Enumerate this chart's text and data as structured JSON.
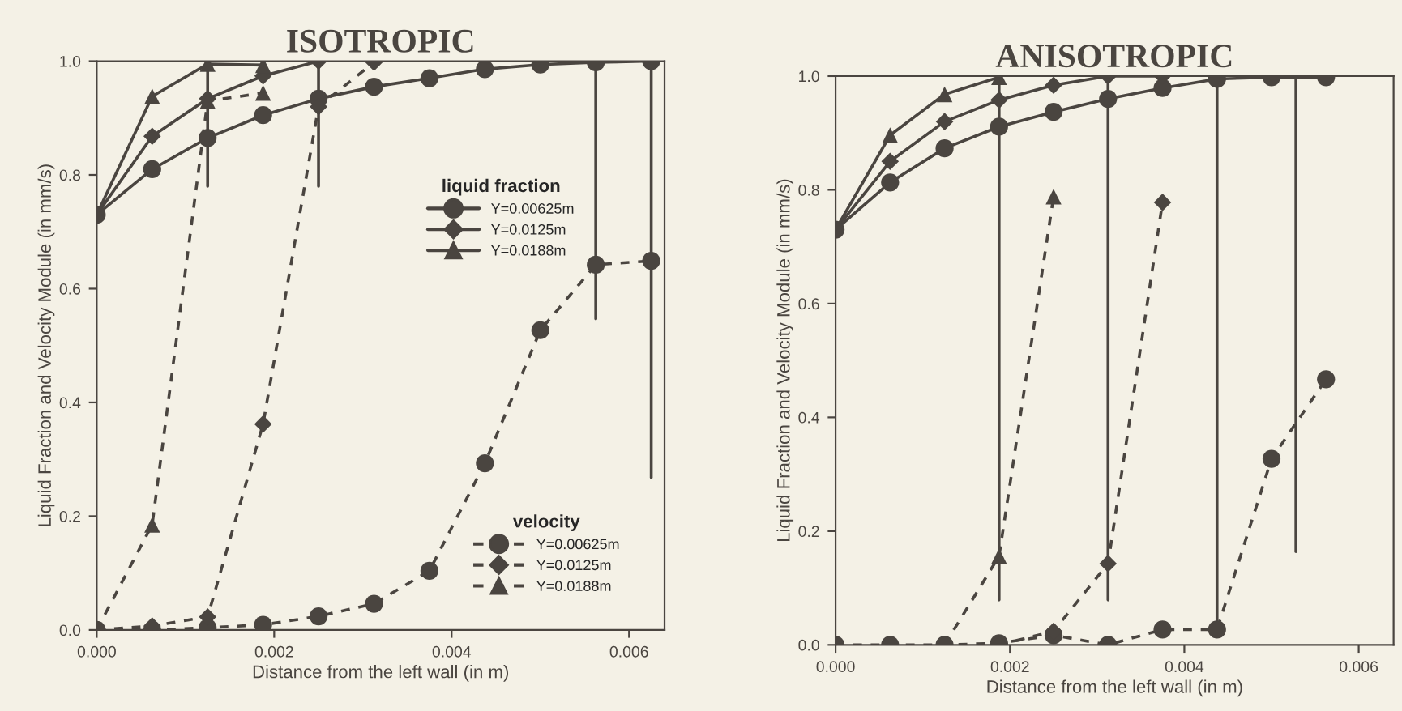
{
  "chart_data": [
    {
      "type": "line",
      "title": "ISOTROPIC",
      "xlabel": "Distance from the left wall (in m)",
      "ylabel": "Liquid Fraction and Velocity Module (in mm/s)",
      "xlim": [
        0,
        0.0064
      ],
      "ylim": [
        0,
        1.0
      ],
      "xticks": [
        {
          "value": 0,
          "label": "0.000"
        },
        {
          "value": 0.002,
          "label": "0.002"
        },
        {
          "value": 0.004,
          "label": "0.004"
        },
        {
          "value": 0.006,
          "label": "0.006"
        }
      ],
      "yticks": [
        {
          "value": 0,
          "label": "0.0"
        },
        {
          "value": 0.2,
          "label": "0.2"
        },
        {
          "value": 0.4,
          "label": "0.4"
        },
        {
          "value": 0.6,
          "label": "0.6"
        },
        {
          "value": 0.8,
          "label": "0.8"
        },
        {
          "value": 1.0,
          "label": "1.0"
        }
      ],
      "grid": false,
      "legend": [
        "center right",
        "lower right"
      ],
      "legend_title": [
        "liquid fraction",
        "velocity"
      ],
      "series": [
        {
          "name": "Y=0.00625m",
          "color": "#4a4540",
          "marker": "circle",
          "line_style": "solid",
          "x": [
            0,
            0.000625,
            0.00125,
            0.001875,
            0.0025,
            0.003125,
            0.00375,
            0.004375,
            0.005,
            0.005625,
            0.00625
          ],
          "values": [
            0.73,
            0.81,
            0.865,
            0.905,
            0.934,
            0.955,
            0.97,
            0.986,
            0.994,
            0.998,
            1.0
          ]
        },
        {
          "name": "Y=0.0125m",
          "color": "#4a4540",
          "marker": "diamond",
          "line_style": "solid",
          "x": [
            0,
            0.000625,
            0.00125,
            0.001875,
            0.0025
          ],
          "values": [
            0.73,
            0.868,
            0.934,
            0.974,
            1.0
          ]
        },
        {
          "name": "Y=0.0188m",
          "color": "#4a4540",
          "marker": "triangle",
          "line_style": "solid",
          "x": [
            0,
            0.000625,
            0.00125,
            0.001875
          ],
          "values": [
            0.73,
            0.938,
            0.995,
            0.993
          ]
        },
        {
          "name": "Y=0.00625m",
          "color": "#4a4540",
          "marker": "circle",
          "line_style": "dashed",
          "x": [
            0,
            0.000625,
            0.00125,
            0.001875,
            0.0025,
            0.003125,
            0.00375,
            0.004375,
            0.005,
            0.005625,
            0.00625
          ],
          "values": [
            0,
            0,
            0.004,
            0.009,
            0.024,
            0.046,
            0.104,
            0.293,
            0.527,
            0.642,
            0.649
          ]
        },
        {
          "name": "Y=0.0125m",
          "color": "#4a4540",
          "marker": "diamond",
          "line_style": "dashed",
          "x": [
            0,
            0.000625,
            0.00125,
            0.001875,
            0.0025,
            0.003125
          ],
          "values": [
            0,
            0.007,
            0.023,
            0.362,
            0.92,
            0.998
          ]
        },
        {
          "name": "Y=0.0188m",
          "color": "#4a4540",
          "marker": "triangle",
          "line_style": "dashed",
          "x": [
            0,
            0.000625,
            0.00125,
            0.001875
          ],
          "values": [
            0,
            0.185,
            0.93,
            0.944
          ]
        },
        {
          "color": "#4a4540",
          "marker": "none",
          "line_style": "solid",
          "x": [
            0.00125,
            0.00125
          ],
          "values": [
            1.0,
            0.78
          ]
        },
        {
          "color": "#4a4540",
          "marker": "none",
          "line_style": "solid",
          "x": [
            0.0025,
            0.0025
          ],
          "values": [
            1.0,
            0.78
          ]
        },
        {
          "color": "#4a4540",
          "marker": "none",
          "line_style": "solid",
          "x": [
            0.005625,
            0.005625
          ],
          "values": [
            1.0,
            0.547
          ]
        },
        {
          "color": "#4a4540",
          "marker": "none",
          "line_style": "solid",
          "x": [
            0.00625,
            0.00625
          ],
          "values": [
            1.0,
            0.268
          ]
        }
      ]
    },
    {
      "type": "line",
      "title": "ANISOTROPIC",
      "xlabel": "Distance from the left wall (in m)",
      "ylabel": "Liquid Fraction and Velocity Module (in mm/s)",
      "xlim": [
        0,
        0.0064
      ],
      "ylim": [
        0,
        1.0
      ],
      "xticks": [
        {
          "value": 0,
          "label": "0.000"
        },
        {
          "value": 0.002,
          "label": "0.002"
        },
        {
          "value": 0.004,
          "label": "0.004"
        },
        {
          "value": 0.006,
          "label": "0.006"
        }
      ],
      "yticks": [
        {
          "value": 0,
          "label": "0.0"
        },
        {
          "value": 0.2,
          "label": "0.2"
        },
        {
          "value": 0.4,
          "label": "0.4"
        },
        {
          "value": 0.6,
          "label": "0.6"
        },
        {
          "value": 0.8,
          "label": "0.8"
        },
        {
          "value": 1.0,
          "label": "1.0"
        }
      ],
      "grid": false,
      "series": [
        {
          "color": "#4a4540",
          "marker": "circle",
          "line_style": "solid",
          "x": [
            0,
            0.000625,
            0.00125,
            0.001875,
            0.0025,
            0.003125,
            0.00375,
            0.004375,
            0.005,
            0.005625
          ],
          "values": [
            0.73,
            0.813,
            0.873,
            0.911,
            0.937,
            0.96,
            0.979,
            0.995,
            0.998,
            0.998
          ]
        },
        {
          "color": "#4a4540",
          "marker": "diamond",
          "line_style": "solid",
          "x": [
            0,
            0.000625,
            0.00125,
            0.001875,
            0.0025,
            0.003125,
            0.00375
          ],
          "values": [
            0.73,
            0.85,
            0.92,
            0.958,
            0.984,
            1.0,
            1.0
          ]
        },
        {
          "color": "#4a4540",
          "marker": "triangle",
          "line_style": "solid",
          "x": [
            0,
            0.000625,
            0.00125,
            0.001875
          ],
          "values": [
            0.73,
            0.896,
            0.968,
            0.998
          ]
        },
        {
          "color": "#4a4540",
          "marker": "circle",
          "line_style": "dashed",
          "x": [
            0,
            0.000625,
            0.00125,
            0.001875,
            0.0025,
            0.003125,
            0.00375,
            0.004375,
            0.005,
            0.005625
          ],
          "values": [
            0,
            0,
            0,
            0.003,
            0.017,
            0,
            0.027,
            0.027,
            0.327,
            0.467
          ]
        },
        {
          "color": "#4a4540",
          "marker": "diamond",
          "line_style": "dashed",
          "x": [
            0.001875,
            0.0025,
            0.003125,
            0.00375
          ],
          "values": [
            0,
            0.024,
            0.143,
            0.778
          ]
        },
        {
          "color": "#4a4540",
          "marker": "triangle",
          "line_style": "dashed",
          "x": [
            0.00125,
            0.001875,
            0.0025
          ],
          "values": [
            0,
            0.156,
            0.788
          ]
        },
        {
          "color": "#4a4540",
          "marker": "none",
          "line_style": "solid",
          "x": [
            0.001875,
            0.001875
          ],
          "values": [
            1.0,
            0.079
          ]
        },
        {
          "color": "#4a4540",
          "marker": "none",
          "line_style": "solid",
          "x": [
            0.003125,
            0.003125
          ],
          "values": [
            1.0,
            0.079
          ]
        },
        {
          "color": "#4a4540",
          "marker": "none",
          "line_style": "solid",
          "x": [
            0.004375,
            0.004375
          ],
          "values": [
            1.0,
            0.027
          ]
        },
        {
          "color": "#4a4540",
          "marker": "none",
          "line_style": "solid",
          "x": [
            0.00528,
            0.00528
          ],
          "values": [
            1.0,
            0.164
          ]
        }
      ]
    }
  ]
}
